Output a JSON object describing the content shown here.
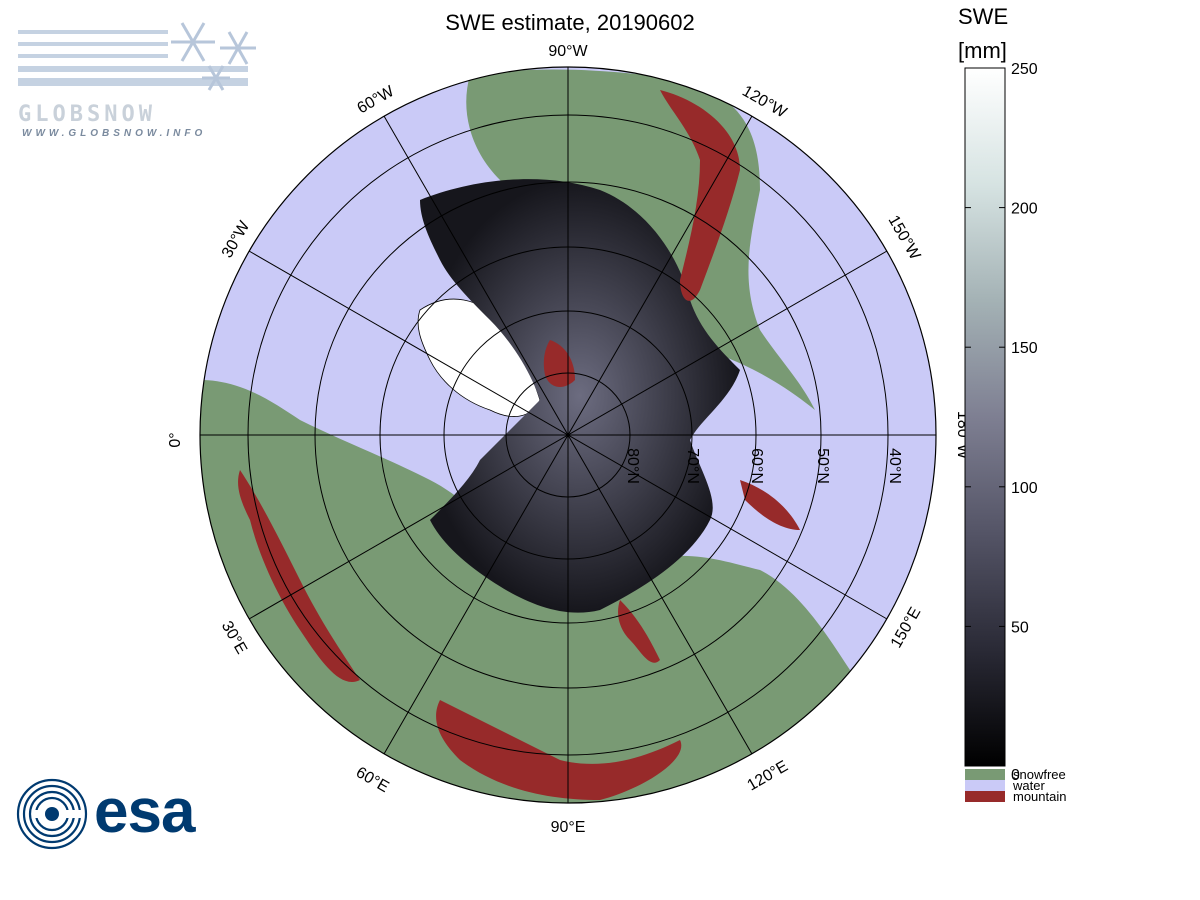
{
  "title": "SWE estimate, 20190602",
  "logos": {
    "globsnow_word": "GLOBSNOW",
    "globsnow_url": "WWW.GLOBSNOW.INFO",
    "esa_word": "esa"
  },
  "colorbar": {
    "title_line1": "SWE",
    "title_line2": "[mm]",
    "ticks": [
      "250",
      "200",
      "150",
      "100",
      "50",
      "0"
    ],
    "tick_values": [
      250,
      200,
      150,
      100,
      50,
      0
    ],
    "range": [
      0,
      250
    ],
    "gradient_colors": [
      "#000000",
      "#2a2a36",
      "#545466",
      "#7e7f92",
      "#a4b2b5",
      "#d6e3e2",
      "#ffffff"
    ],
    "legend": [
      {
        "label": "snowfree",
        "color": "#799a74"
      },
      {
        "label": "water",
        "color": "#cacaf7"
      },
      {
        "label": "mountain",
        "color": "#972a2a"
      }
    ]
  },
  "map": {
    "projection": "north polar stereographic",
    "colors": {
      "water": "#cacaf7",
      "snowfree": "#799a74",
      "mountain": "#972a2a",
      "snow": "#1c1c22"
    },
    "longitude_labels": [
      "0°",
      "30°W",
      "60°W",
      "90°W",
      "120°W",
      "150°W",
      "180°W",
      "150°E",
      "120°E",
      "90°E",
      "60°E",
      "30°E"
    ],
    "latitude_labels": [
      "80°N",
      "70°N",
      "60°N",
      "50°N",
      "40°N"
    ]
  }
}
